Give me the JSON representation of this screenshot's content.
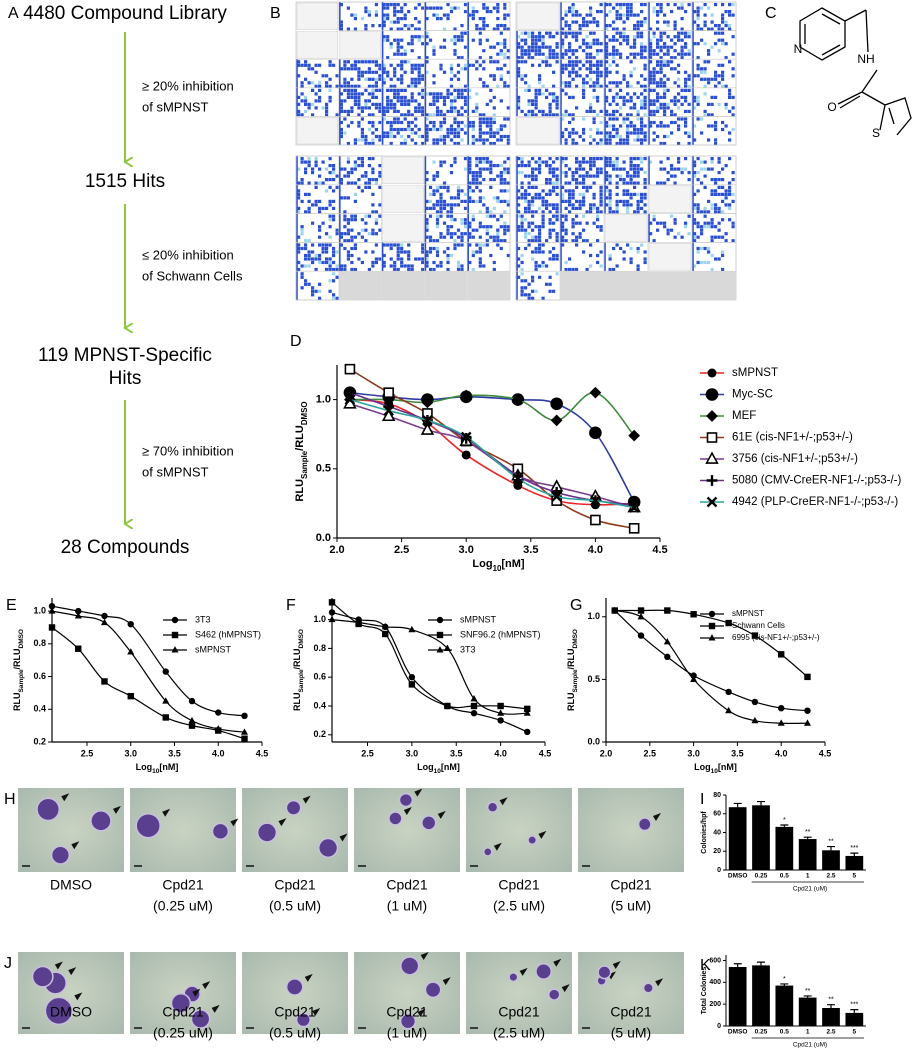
{
  "flow": {
    "letter": "A",
    "nodes": [
      [
        "4480 Compound Library"
      ],
      [
        "1515 Hits"
      ],
      [
        "119 MPNST-Specific",
        "Hits"
      ],
      [
        "28 Compounds"
      ]
    ],
    "steps": [
      [
        "≥ 20% inhibition",
        "of sMPNST"
      ],
      [
        "≤ 20% inhibition",
        "of Schwann Cells"
      ],
      [
        "≥ 70% inhibition",
        "of sMPNST"
      ]
    ]
  },
  "heatmap": {
    "letter": "B"
  },
  "structure": {
    "letter": "C",
    "atoms": [
      "N",
      "NH",
      "O",
      "S"
    ]
  },
  "chart_data": [
    {
      "type": "line",
      "letter": "D",
      "xlabel": [
        "Log",
        "10",
        "[nM]"
      ],
      "ylabel": [
        "RLU",
        "Sample",
        "/RLU",
        "DMSO"
      ],
      "x": [
        2.1,
        2.4,
        2.7,
        3.0,
        3.4,
        3.7,
        4.0,
        4.3
      ],
      "xlim": [
        2,
        4.5
      ],
      "ylim": [
        0,
        1.25
      ],
      "xticks": [
        {
          "value": 2,
          "label": "2.0"
        },
        2.5,
        {
          "value": 3,
          "label": "3.0"
        },
        3.5,
        {
          "value": 4,
          "label": "4.0"
        },
        4.5
      ],
      "yticks": [
        {
          "value": 0,
          "label": "0.0"
        },
        0.5,
        {
          "value": 1,
          "label": "1.0"
        }
      ],
      "marker_color": "#000000",
      "series": [
        {
          "name": "sMPNST",
          "color": "#e8262a",
          "marker": "circle",
          "values": [
            1.0,
            0.97,
            0.83,
            0.6,
            0.38,
            0.27,
            0.24,
            0.25
          ]
        },
        {
          "name": "Myc-SC",
          "color": "#2f3c9e",
          "marker": "big-circle",
          "values": [
            1.05,
            1.02,
            1.0,
            1.02,
            1.0,
            0.97,
            0.76,
            0.26
          ]
        },
        {
          "name": "MEF",
          "color": "#3d8a3e",
          "marker": "diamond",
          "values": [
            1.0,
            1.0,
            0.98,
            1.03,
            1.0,
            0.85,
            1.05,
            0.74
          ]
        },
        {
          "name": "61E (cis-NF1+/-;p53+/-)",
          "color": "#8b3a1a",
          "marker": "open-square",
          "values": [
            1.22,
            1.05,
            0.9,
            0.7,
            0.5,
            0.27,
            0.13,
            0.07
          ]
        },
        {
          "name": "3756 (cis-NF1+/-;p53+/-)",
          "color": "#7a3c8e",
          "marker": "open-triangle",
          "values": [
            0.97,
            0.88,
            0.78,
            0.7,
            0.45,
            0.37,
            0.3,
            0.22
          ]
        },
        {
          "name": "5080 (CMV-CreER-NF1-/-;p53-/-)",
          "color": "#6b2f8a",
          "marker": "plus",
          "values": [
            1.05,
            0.95,
            0.85,
            0.72,
            0.45,
            0.33,
            0.27,
            0.24
          ]
        },
        {
          "name": "4942 (PLP-CreER-NF1-/-;p53-/-)",
          "color": "#2aa39a",
          "marker": "x",
          "values": [
            1.0,
            0.92,
            0.85,
            0.73,
            0.43,
            0.3,
            0.27,
            0.22
          ]
        }
      ]
    },
    {
      "type": "line",
      "letter": "E",
      "xlabel": [
        "Log",
        "10",
        "[nM]"
      ],
      "ylabel": [
        "RLU",
        "Sample",
        "/RLU",
        "DMSO"
      ],
      "x": [
        2.1,
        2.4,
        2.7,
        3.0,
        3.4,
        3.7,
        4.0,
        4.3
      ],
      "xlim": [
        2.1,
        4.5
      ],
      "ylim": [
        0.2,
        1.08
      ],
      "xticks": [
        2.5,
        {
          "value": 3,
          "label": "3.0"
        },
        3.5,
        {
          "value": 4,
          "label": "4.0"
        },
        4.5
      ],
      "yticks": [
        0.2,
        0.4,
        0.6,
        0.8,
        {
          "value": 1,
          "label": "1.0"
        }
      ],
      "marker_color": "#000000",
      "series": [
        {
          "name": "3T3",
          "color": "#000000",
          "marker": "circle",
          "values": [
            1.03,
            1.0,
            0.97,
            0.92,
            0.63,
            0.45,
            0.38,
            0.36
          ]
        },
        {
          "name": "S462 (hMPNST)",
          "color": "#000000",
          "marker": "square",
          "values": [
            0.9,
            0.77,
            0.57,
            0.48,
            0.35,
            0.3,
            0.27,
            0.22
          ]
        },
        {
          "name": "sMPNST",
          "color": "#000000",
          "marker": "triangle",
          "values": [
            1.0,
            0.97,
            0.93,
            0.75,
            0.45,
            0.33,
            0.28,
            0.26
          ]
        }
      ]
    },
    {
      "type": "line",
      "letter": "F",
      "xlabel": [
        "Log",
        "10",
        "[nM]"
      ],
      "ylabel": [
        "RLU",
        "Sample",
        "/RLU",
        "DMSO"
      ],
      "x": [
        2.1,
        2.4,
        2.7,
        3.0,
        3.4,
        3.7,
        4.0,
        4.3
      ],
      "xlim": [
        2.1,
        4.5
      ],
      "ylim": [
        0.15,
        1.15
      ],
      "xticks": [
        2.5,
        {
          "value": 3,
          "label": "3.0"
        },
        3.5,
        {
          "value": 4,
          "label": "4.0"
        },
        4.5
      ],
      "yticks": [
        0.2,
        0.4,
        0.6,
        0.8,
        {
          "value": 1,
          "label": "1.0"
        }
      ],
      "marker_color": "#000000",
      "series": [
        {
          "name": "sMPNST",
          "color": "#000000",
          "marker": "circle",
          "values": [
            1.05,
            1.0,
            0.95,
            0.6,
            0.4,
            0.35,
            0.3,
            0.22
          ]
        },
        {
          "name": "SNF96.2 (hMPNST)",
          "color": "#000000",
          "marker": "square",
          "values": [
            1.12,
            0.97,
            0.9,
            0.55,
            0.4,
            0.4,
            0.4,
            0.38
          ]
        },
        {
          "name": "3T3",
          "color": "#000000",
          "marker": "triangle",
          "values": [
            1.0,
            0.98,
            0.95,
            0.93,
            0.8,
            0.45,
            0.35,
            0.35
          ]
        }
      ]
    },
    {
      "type": "line",
      "letter": "G",
      "xlabel": [
        "Log",
        "10",
        "[nM]"
      ],
      "ylabel": [
        "RLU",
        "Sample",
        "/RLU",
        "DMSO"
      ],
      "x": [
        2.1,
        2.4,
        2.7,
        3.0,
        3.4,
        3.7,
        4.0,
        4.3
      ],
      "xlim": [
        2,
        4.5
      ],
      "ylim": [
        0,
        1.15
      ],
      "xticks": [
        {
          "value": 2,
          "label": "2.0"
        },
        2.5,
        {
          "value": 3,
          "label": "3.0"
        },
        3.5,
        {
          "value": 4,
          "label": "4.0"
        },
        4.5
      ],
      "yticks": [
        {
          "value": 0,
          "label": "0.0"
        },
        0.5,
        {
          "value": 1,
          "label": "1.0"
        }
      ],
      "marker_color": "#000000",
      "series": [
        {
          "name": "sMPNST",
          "color": "#000000",
          "marker": "circle",
          "values": [
            1.05,
            0.85,
            0.68,
            0.53,
            0.4,
            0.32,
            0.27,
            0.25
          ]
        },
        {
          "name": "Schwann Cells",
          "color": "#000000",
          "marker": "square",
          "values": [
            1.05,
            1.05,
            1.05,
            1.02,
            0.95,
            0.85,
            0.7,
            0.52
          ]
        },
        {
          "name": "6995 (cis-NF1+/-;p53+/-)",
          "color": "#000000",
          "marker": "triangle",
          "values": [
            1.05,
            1.0,
            0.8,
            0.5,
            0.25,
            0.17,
            0.15,
            0.15
          ]
        }
      ]
    },
    {
      "type": "bar",
      "letter": "I",
      "ylabel": "Colonies/hpf",
      "xlabel": "Cpd21 (uM)",
      "categories": [
        "DMSO",
        "0.25",
        "0.5",
        "1",
        "2.5",
        "5"
      ],
      "values": [
        67,
        69,
        46,
        33,
        21,
        15
      ],
      "errors": [
        4,
        4,
        2,
        2,
        4,
        3
      ],
      "significance": [
        null,
        null,
        "*",
        "**",
        "**",
        "***"
      ],
      "color": "#000000",
      "ylim": [
        0,
        80
      ],
      "yticks": [
        0,
        20,
        40,
        60,
        80
      ]
    },
    {
      "type": "bar",
      "letter": "K",
      "ylabel": "Total Colonies",
      "xlabel": "Cpd21 (uM)",
      "categories": [
        "DMSO",
        "0.25",
        "0.5",
        "1",
        "2.5",
        "5"
      ],
      "values": [
        540,
        555,
        370,
        260,
        165,
        120
      ],
      "errors": [
        30,
        30,
        15,
        15,
        30,
        30
      ],
      "significance": [
        null,
        null,
        "*",
        "**",
        "**",
        "***"
      ],
      "color": "#000000",
      "ylim": [
        0,
        650
      ],
      "yticks": [
        0,
        200,
        400,
        600
      ]
    }
  ],
  "images_h": {
    "letter": "H",
    "captions": [
      [
        "DMSO"
      ],
      [
        "Cpd21",
        "(0.25 uM)"
      ],
      [
        "Cpd21",
        "(0.5 uM)"
      ],
      [
        "Cpd21",
        "(1 uM)"
      ],
      [
        "Cpd21",
        "(2.5 uM)"
      ],
      [
        "Cpd21",
        "(5 uM)"
      ]
    ]
  },
  "images_j": {
    "letter": "J",
    "captions": [
      [
        "DMSO"
      ],
      [
        "Cpd21",
        "(0.25 uM)"
      ],
      [
        "Cpd21",
        "(0.5 uM)"
      ],
      [
        "Cpd21",
        "(1 uM)"
      ],
      [
        "Cpd21",
        "(2.5 uM)"
      ],
      [
        "Cpd21",
        "(5 uM)"
      ]
    ]
  }
}
